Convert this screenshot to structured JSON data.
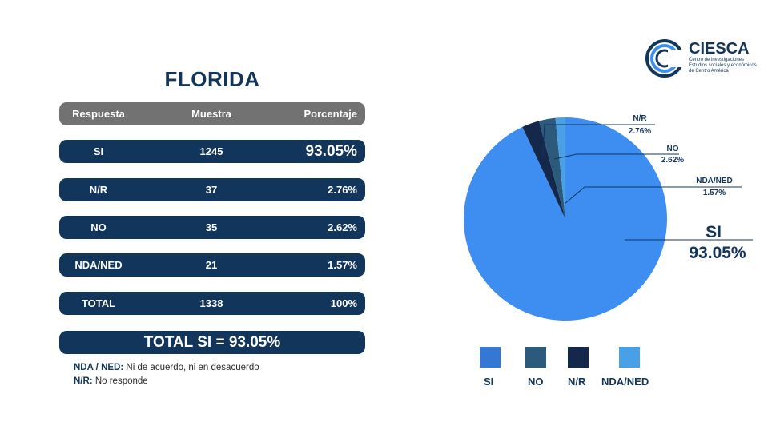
{
  "logo": {
    "name": "CIESCA",
    "subtitle": "Centro de investigaciones Estudios sociales y económicos de Centro América"
  },
  "title": "FLORIDA",
  "table": {
    "headers": [
      "Respuesta",
      "Muestra",
      "Porcentaje"
    ],
    "rows": [
      {
        "respuesta": "SI",
        "muestra": "1245",
        "porcentaje": "93.05%"
      },
      {
        "respuesta": "N/R",
        "muestra": "37",
        "porcentaje": "2.76%"
      },
      {
        "respuesta": "NO",
        "muestra": "35",
        "porcentaje": "2.62%"
      },
      {
        "respuesta": "NDA/NED",
        "muestra": "21",
        "porcentaje": "1.57%"
      },
      {
        "respuesta": "TOTAL",
        "muestra": "1338",
        "porcentaje": "100%"
      }
    ],
    "total_si": "TOTAL SI = 93.05%"
  },
  "notes": [
    {
      "term": "NDA / NED:",
      "text": " Ni de acuerdo, ni en desacuerdo"
    },
    {
      "term": "N/R:",
      "text": " No responde"
    }
  ],
  "chart_data": {
    "type": "pie",
    "slices": [
      {
        "label": "SI",
        "value": 93.05,
        "value_label": "93.05%",
        "color": "#3d8ef0"
      },
      {
        "label": "N/R",
        "value": 2.76,
        "value_label": "2.76%",
        "color": "#13284a"
      },
      {
        "label": "NO",
        "value": 2.62,
        "value_label": "2.62%",
        "color": "#2c5a7c"
      },
      {
        "label": "NDA/NED",
        "value": 1.57,
        "value_label": "1.57%",
        "color": "#4aa0e6"
      }
    ],
    "legend": [
      {
        "label": "SI",
        "color": "#3478d4"
      },
      {
        "label": "NO",
        "color": "#2c5a7c"
      },
      {
        "label": "N/R",
        "color": "#13284a"
      },
      {
        "label": "NDA/NED",
        "color": "#4aa0e6"
      }
    ],
    "legend_position": "bottom"
  }
}
